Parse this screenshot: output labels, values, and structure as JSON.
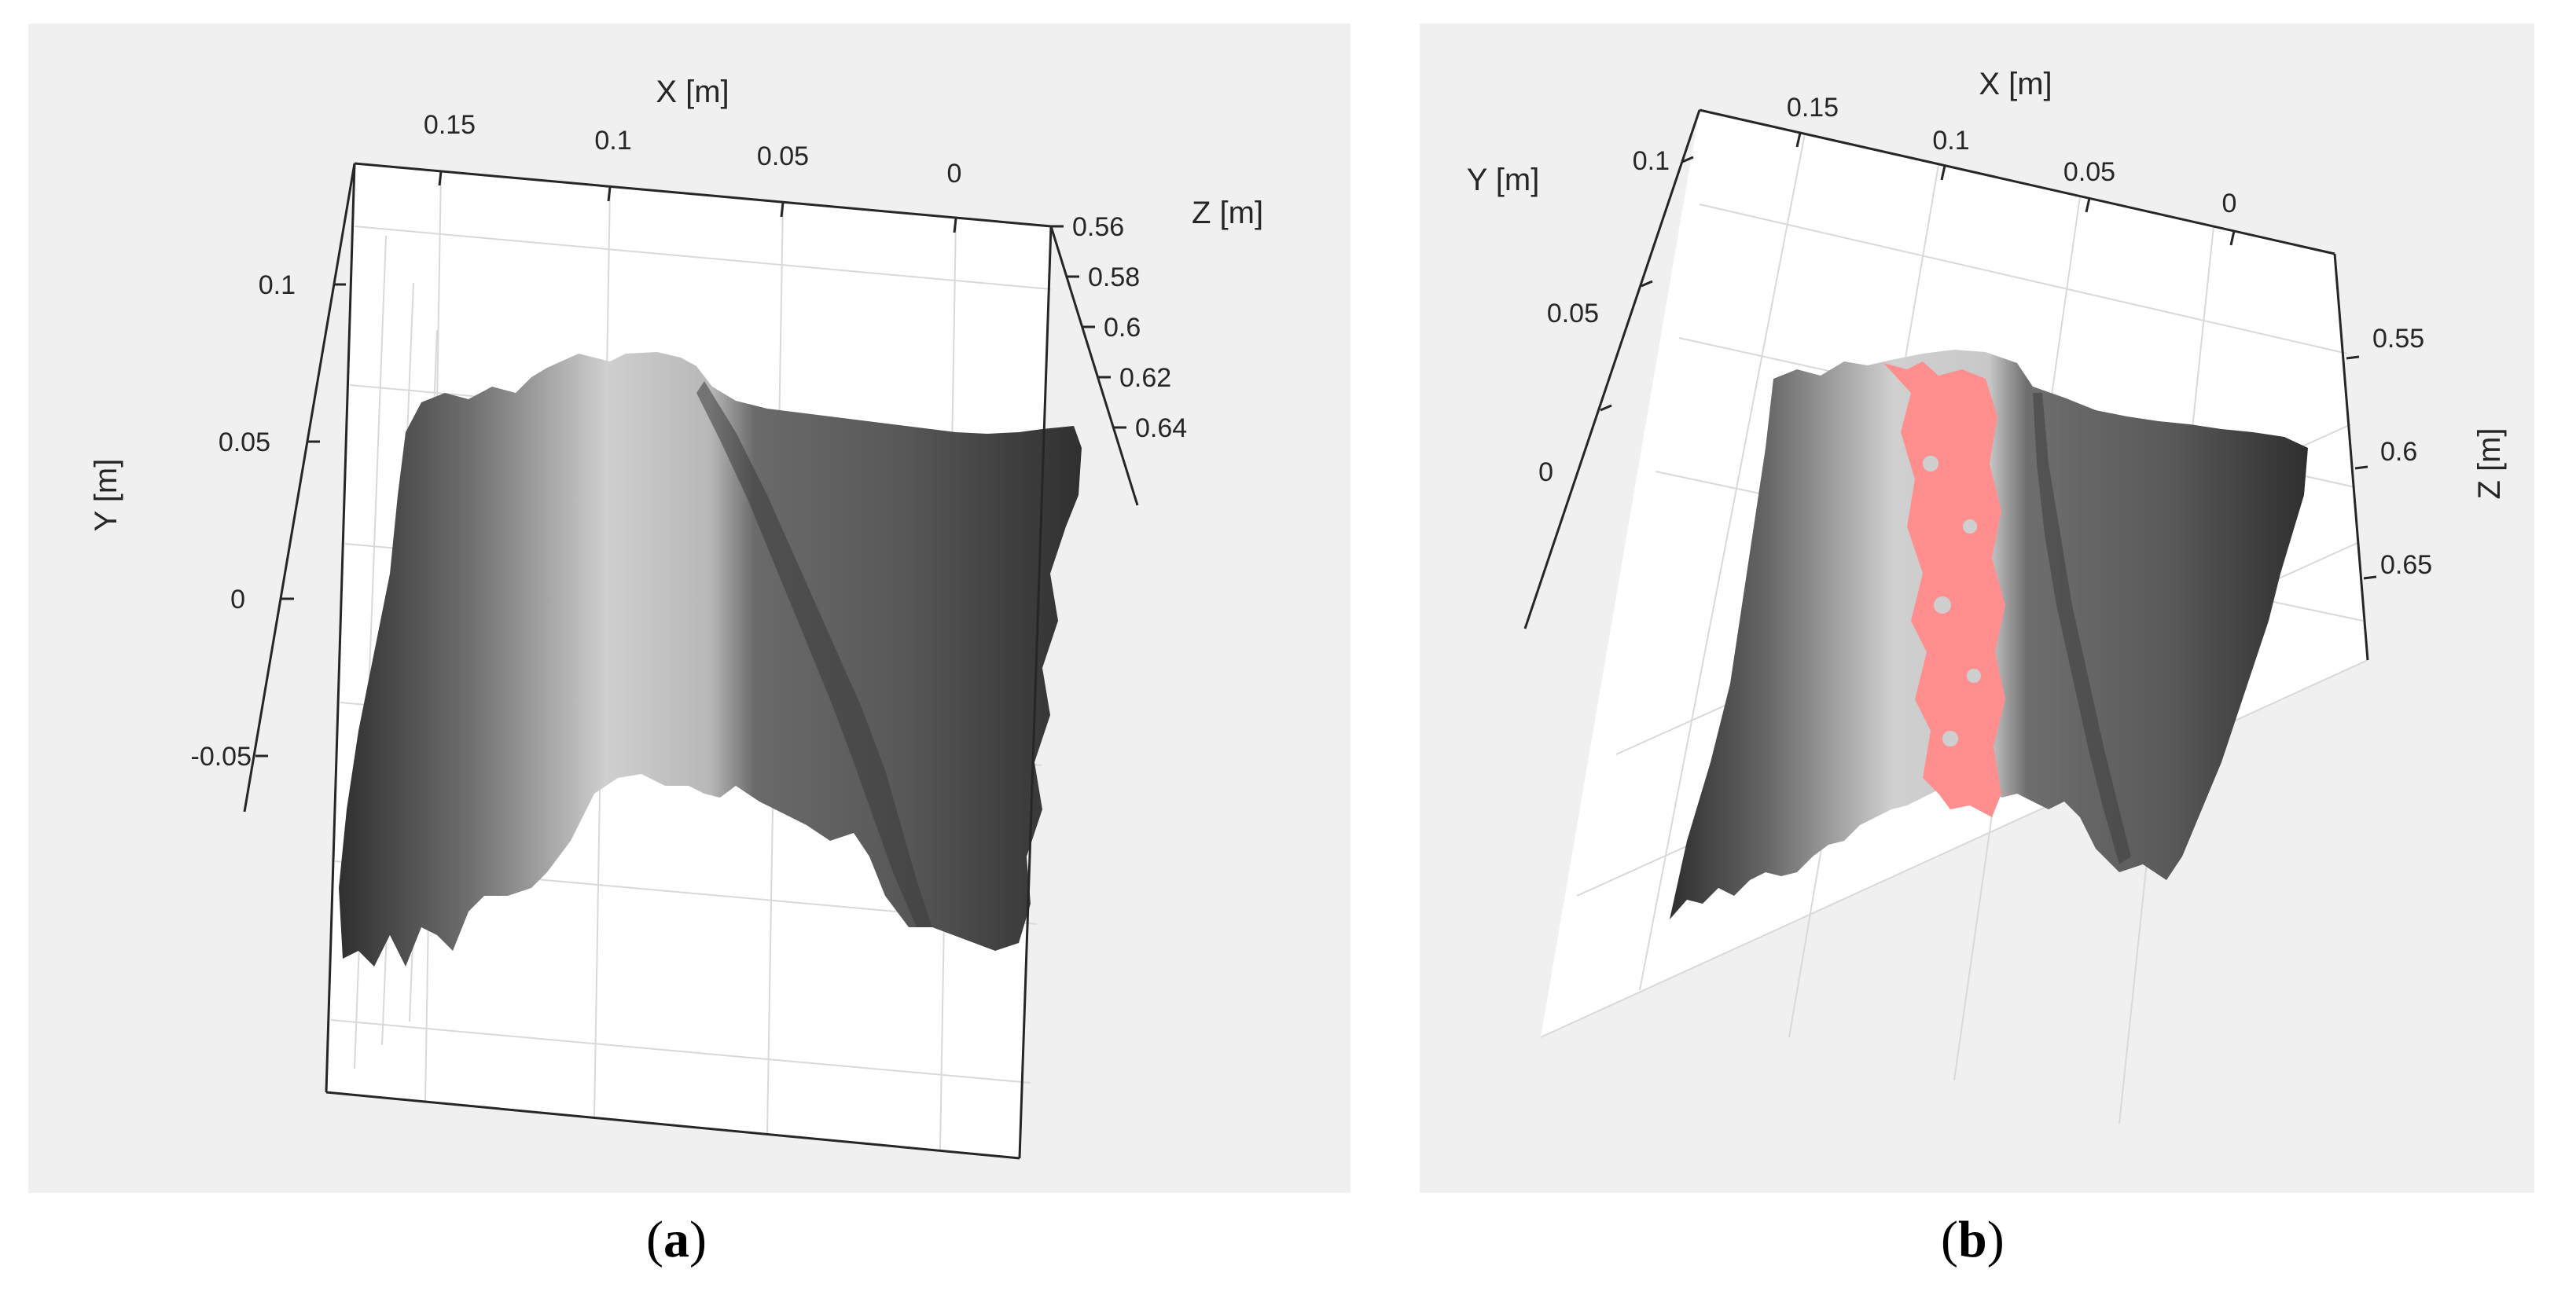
{
  "chart_data": [
    {
      "type": "surface",
      "panel": "a",
      "caption_open": "(",
      "caption_letter": "a",
      "caption_close": ")",
      "xlabel": "X [m]",
      "ylabel": "Y [m]",
      "zlabel": "Z [m]",
      "x_ticks": [
        "0.15",
        "0.1",
        "0.05",
        "0"
      ],
      "y_ticks": [
        "0.1",
        "0.05",
        "0",
        "-0.05"
      ],
      "z_ticks": [
        "0.56",
        "0.58",
        "0.6",
        "0.62",
        "0.64"
      ],
      "grid": true,
      "colormap": "gray",
      "highlight": null
    },
    {
      "type": "surface",
      "panel": "b",
      "caption_open": "(",
      "caption_letter": "b",
      "caption_close": ")",
      "xlabel": "X [m]",
      "ylabel": "Y [m]",
      "zlabel": "Z [m]",
      "x_ticks": [
        "0.15",
        "0.1",
        "0.05",
        "0"
      ],
      "y_ticks": [
        "0.1",
        "0.05",
        "0"
      ],
      "z_ticks": [
        "0.55",
        "0.6",
        "0.65"
      ],
      "grid": true,
      "colormap": "gray",
      "highlight": "#ff8f8f"
    }
  ],
  "colors": {
    "panel_background": "#f0f0f0",
    "axis_line": "#262626",
    "grid_line": "#d9d9d9",
    "surface_dark": "#2e2e2e",
    "surface_light": "#d8d8d8",
    "highlight": "#ff8f8f"
  }
}
